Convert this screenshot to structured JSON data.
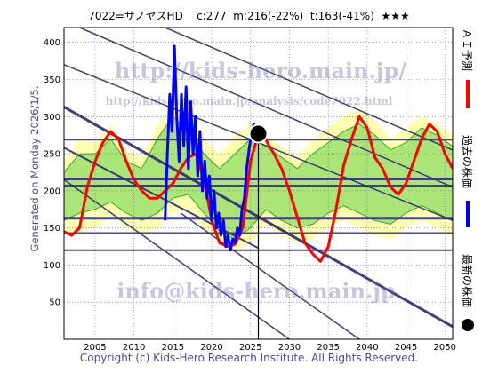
{
  "header": {
    "title": "7022=サノヤスHD    c:277  m:216(-22%)  t:163(-41%)  ★★★"
  },
  "side": {
    "generated": "Generated on Monday 2026/1/5."
  },
  "footer": {
    "copyright": "Copyright (c) Kids-Hero Research Institute. All Rights Reserved."
  },
  "watermarks": {
    "top": "http://kids-hero.main.jp/",
    "mid": "http://kids-hero.main.jp/analysis/code7022.html",
    "bottom": "info@kids-hero.main.jp"
  },
  "legend": {
    "forecast": "ＡＩ予測",
    "past": "過去の株価",
    "latest": "最新の株価"
  },
  "colors": {
    "forecast": "#ff0000",
    "past": "#0000ff",
    "latest": "#000000",
    "band_outer": "#ffffb0",
    "band_inner": "#88d860",
    "band_line": "#33aa22",
    "trend": "#2a2a6e",
    "grid": "#6a6a9a"
  },
  "chart_data": {
    "type": "line",
    "xlim": [
      2001,
      2051
    ],
    "ylim": [
      0,
      420
    ],
    "x_ticks": [
      2005,
      2010,
      2015,
      2020,
      2025,
      2030,
      2035,
      2040,
      2045,
      2050
    ],
    "y_ticks": [
      50,
      100,
      150,
      200,
      250,
      300,
      350,
      400
    ],
    "grid": true,
    "current": {
      "x": 2026.0,
      "y": 277
    },
    "h_lines": [
      {
        "y": 269,
        "width": 2
      },
      {
        "y": 216,
        "width": 3
      },
      {
        "y": 207,
        "width": 2
      },
      {
        "y": 163,
        "width": 3
      },
      {
        "y": 143,
        "width": 2
      },
      {
        "y": 120,
        "width": 2
      }
    ],
    "trend_lines": [
      {
        "x1": 2001,
        "y1": 313,
        "x2": 2051,
        "y2": 17,
        "width": 3
      },
      {
        "x1": 2001,
        "y1": 258,
        "x2": 2026,
        "y2": 123,
        "width": 2
      },
      {
        "x1": 2001,
        "y1": 370,
        "x2": 2051,
        "y2": 160,
        "width": 1.5
      },
      {
        "x1": 2003,
        "y1": 420,
        "x2": 2051,
        "y2": 205,
        "width": 1.5
      },
      {
        "x1": 2001,
        "y1": 215,
        "x2": 2030,
        "y2": 0,
        "width": 1.5
      },
      {
        "x1": 2014,
        "y1": 420,
        "x2": 2051,
        "y2": 255,
        "width": 1.5
      },
      {
        "x1": 2016,
        "y1": 170,
        "x2": 2039,
        "y2": 0,
        "width": 1.5
      }
    ],
    "band_outer": {
      "x": [
        2001,
        2003,
        2005,
        2007,
        2009,
        2011,
        2013,
        2015,
        2017,
        2019,
        2021,
        2023,
        2025,
        2027,
        2029,
        2031,
        2033,
        2035,
        2037,
        2039,
        2041,
        2043,
        2045,
        2047,
        2049,
        2051
      ],
      "upper": [
        240,
        270,
        265,
        290,
        255,
        245,
        290,
        315,
        295,
        270,
        250,
        275,
        290,
        275,
        260,
        245,
        270,
        285,
        300,
        310,
        295,
        270,
        285,
        300,
        290,
        275
      ],
      "lower": [
        140,
        145,
        150,
        165,
        150,
        140,
        150,
        170,
        175,
        150,
        130,
        120,
        130,
        155,
        140,
        130,
        135,
        150,
        160,
        150,
        140,
        135,
        150,
        160,
        150,
        140
      ]
    },
    "band_inner": {
      "x": [
        2001,
        2003,
        2005,
        2007,
        2009,
        2011,
        2013,
        2015,
        2017,
        2019,
        2021,
        2023,
        2025,
        2027,
        2029,
        2031,
        2033,
        2035,
        2037,
        2039,
        2041,
        2043,
        2045,
        2047,
        2049,
        2051
      ],
      "upper": [
        225,
        250,
        250,
        270,
        240,
        230,
        270,
        300,
        280,
        250,
        230,
        250,
        270,
        260,
        245,
        230,
        250,
        265,
        280,
        290,
        275,
        255,
        265,
        285,
        275,
        260
      ],
      "lower": [
        160,
        170,
        175,
        185,
        170,
        160,
        170,
        190,
        195,
        170,
        145,
        135,
        150,
        175,
        160,
        150,
        155,
        170,
        180,
        170,
        160,
        155,
        170,
        180,
        170,
        160
      ]
    },
    "series": [
      {
        "name": "ＡＩ予測",
        "x": [
          2001.0,
          2002.0,
          2003.0,
          2004.0,
          2005.0,
          2006.0,
          2007.0,
          2008.0,
          2009.0,
          2010.0,
          2011.0,
          2012.0,
          2013.0,
          2014.0,
          2015.0,
          2016.0,
          2017.0,
          2018.0,
          2019.0,
          2020.0,
          2021.0,
          2022.0,
          2023.0,
          2024.0,
          2025.0,
          2026.0,
          2027.0,
          2028.0,
          2029.0,
          2030.0,
          2031.0,
          2032.0,
          2033.0,
          2034.0,
          2035.0,
          2036.0,
          2037.0,
          2038.0,
          2039.0,
          2040.0,
          2041.0,
          2042.0,
          2043.0,
          2044.0,
          2045.0,
          2046.0,
          2047.0,
          2048.0,
          2049.0,
          2050.0,
          2051.0
        ],
        "y": [
          145,
          140,
          150,
          205,
          240,
          265,
          280,
          270,
          240,
          215,
          200,
          190,
          190,
          200,
          210,
          230,
          245,
          250,
          215,
          160,
          130,
          125,
          128,
          150,
          240,
          277,
          268,
          250,
          230,
          200,
          165,
          130,
          115,
          105,
          125,
          175,
          235,
          270,
          300,
          285,
          245,
          230,
          205,
          195,
          210,
          240,
          270,
          290,
          280,
          250,
          230
        ]
      },
      {
        "name": "過去の株価",
        "x": [
          2014.0,
          2014.3,
          2014.6,
          2014.9,
          2015.2,
          2015.5,
          2015.8,
          2016.1,
          2016.4,
          2016.7,
          2017.0,
          2017.3,
          2017.6,
          2017.9,
          2018.2,
          2018.5,
          2018.8,
          2019.1,
          2019.4,
          2019.7,
          2020.0,
          2020.3,
          2020.6,
          2020.9,
          2021.2,
          2021.5,
          2021.8,
          2022.1,
          2022.4,
          2022.7,
          2023.0,
          2023.3,
          2023.6,
          2023.9,
          2024.2,
          2024.5,
          2024.8,
          2025.1,
          2025.4,
          2025.7,
          2026.0
        ],
        "y": [
          160,
          250,
          330,
          280,
          395,
          300,
          240,
          330,
          260,
          340,
          230,
          320,
          250,
          300,
          220,
          280,
          200,
          240,
          190,
          220,
          160,
          200,
          150,
          170,
          140,
          160,
          125,
          140,
          120,
          135,
          130,
          150,
          140,
          175,
          190,
          230,
          255,
          275,
          290,
          265,
          277
        ]
      }
    ]
  }
}
